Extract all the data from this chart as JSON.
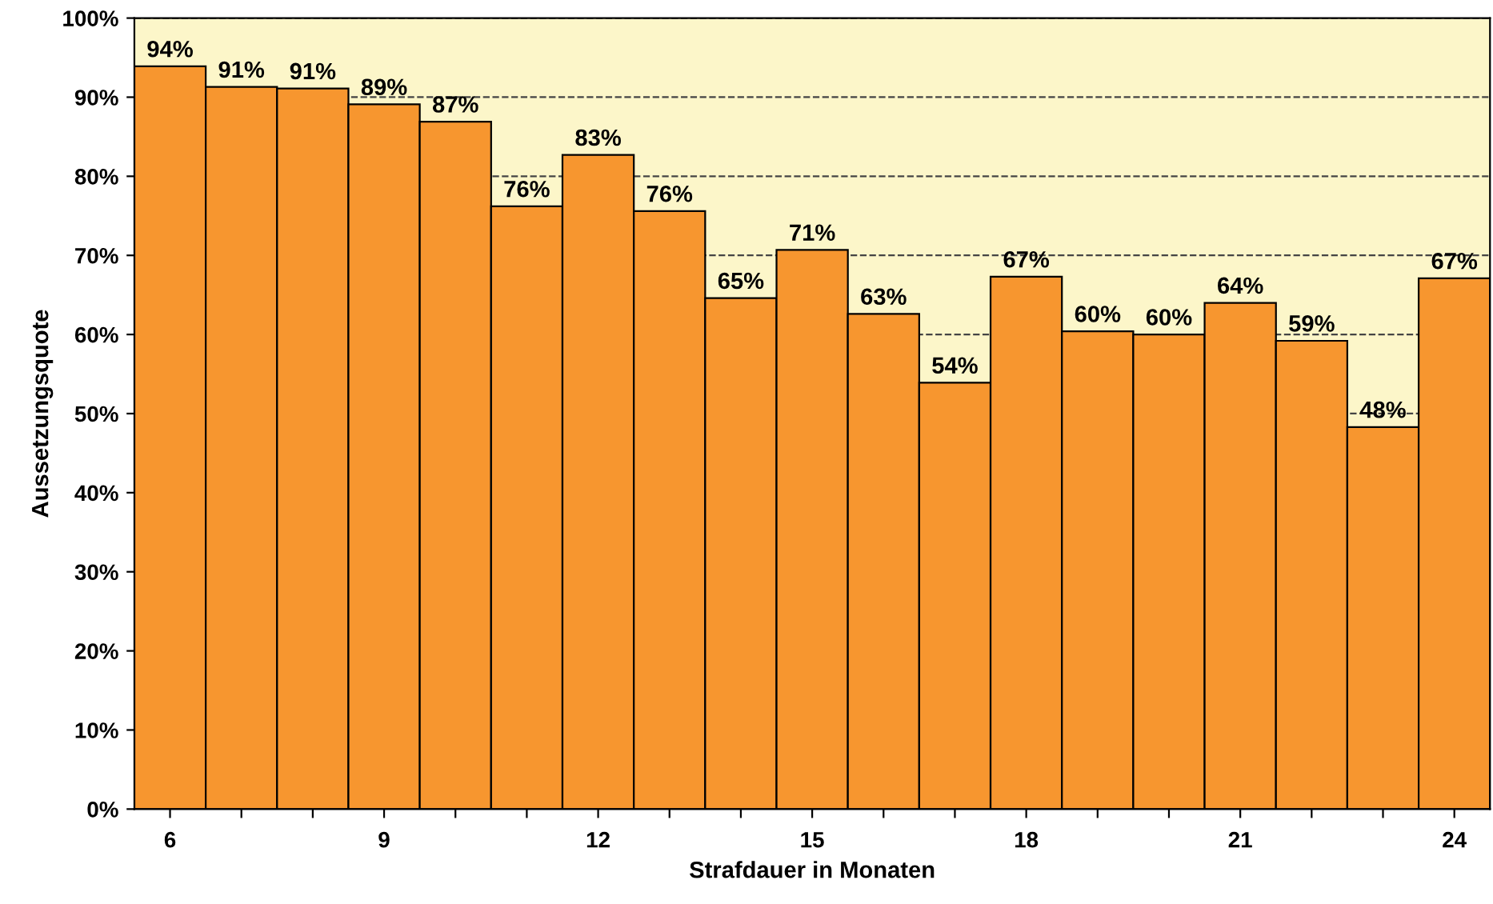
{
  "chart_data": {
    "type": "bar",
    "xlabel": "Strafdauer in Monaten",
    "ylabel": "Aussetzungsquote",
    "categories": [
      "6",
      null,
      null,
      "9",
      null,
      null,
      "12",
      null,
      null,
      "15",
      null,
      null,
      "18",
      null,
      null,
      "21",
      null,
      null,
      "24"
    ],
    "values": [
      93.9,
      91.3,
      91.1,
      89.1,
      86.9,
      76.2,
      82.7,
      75.6,
      64.6,
      70.7,
      62.6,
      53.9,
      67.3,
      60.4,
      60.0,
      64.0,
      59.2,
      48.3,
      67.1
    ],
    "value_labels": [
      "94%",
      "91%",
      "91%",
      "89%",
      "87%",
      "76%",
      "83%",
      "76%",
      "65%",
      "71%",
      "63%",
      "54%",
      "67%",
      "60%",
      "60%",
      "64%",
      "59%",
      "48%",
      "67%"
    ],
    "color": "#f7962f",
    "ylim": [
      0,
      100
    ],
    "yticks": [
      {
        "value": 0,
        "label": "0%"
      },
      {
        "value": 10,
        "label": "10%"
      },
      {
        "value": 20,
        "label": "20%"
      },
      {
        "value": 30,
        "label": "30%"
      },
      {
        "value": 40,
        "label": "40%"
      },
      {
        "value": 50,
        "label": "50%"
      },
      {
        "value": 60,
        "label": "60%"
      },
      {
        "value": 70,
        "label": "70%"
      },
      {
        "value": 80,
        "label": "80%"
      },
      {
        "value": 90,
        "label": "90%"
      },
      {
        "value": 100,
        "label": "100%"
      }
    ],
    "grid": "y",
    "line_style": "dashed"
  }
}
